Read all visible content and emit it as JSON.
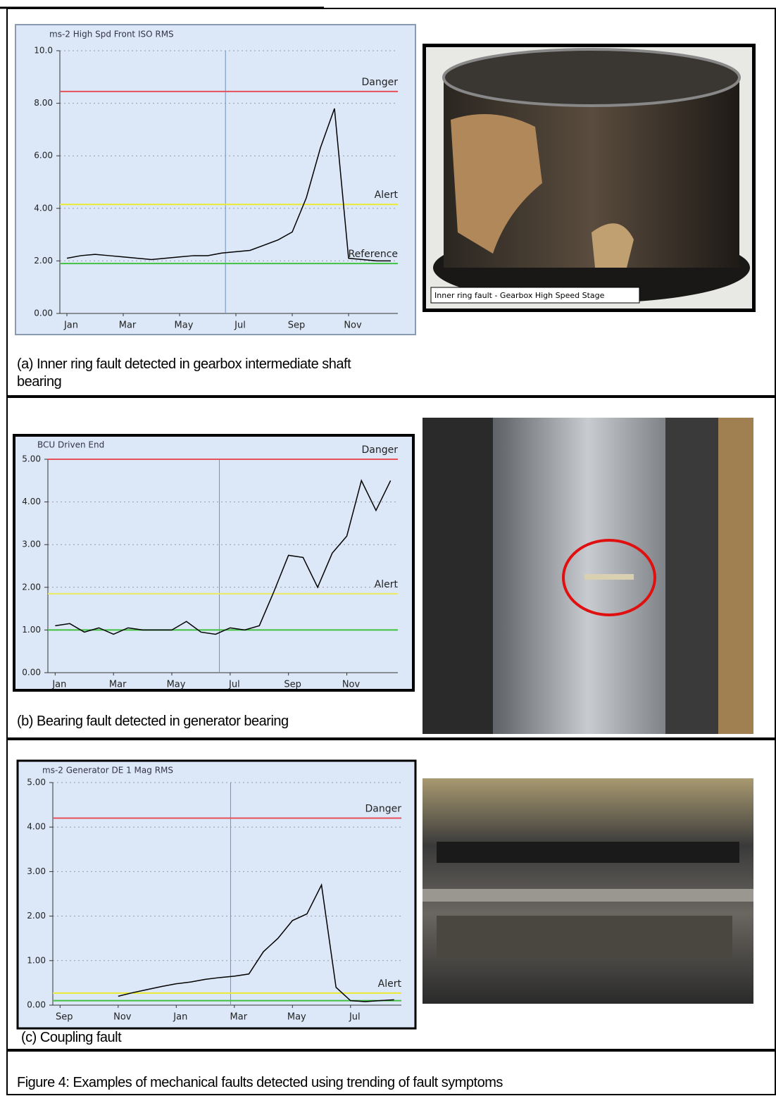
{
  "chart_data": [
    {
      "type": "line",
      "title": "ms-2 High Spd Front ISO RMS",
      "categories": [
        "Jan",
        null,
        null,
        null,
        "Mar",
        null,
        null,
        null,
        "May",
        null,
        null,
        null,
        "Jul",
        null,
        null,
        null,
        "Sep",
        null,
        null,
        null,
        "Nov",
        null,
        null,
        null
      ],
      "series": [
        {
          "color": "#000000",
          "values": [
            2.1,
            2.2,
            2.25,
            2.2,
            2.15,
            2.1,
            2.05,
            2.1,
            2.15,
            2.2,
            2.2,
            2.3,
            2.35,
            2.4,
            2.6,
            2.8,
            3.1,
            4.4,
            6.3,
            7.8,
            2.1,
            2.05,
            2.0,
            2.0
          ]
        }
      ],
      "ylim": [
        0,
        10
      ],
      "yticks": [
        {
          "value": 0,
          "label": "0.00"
        },
        {
          "value": 2,
          "label": "2.00"
        },
        {
          "value": 4,
          "label": "4.00"
        },
        {
          "value": 6,
          "label": "6.00"
        },
        {
          "value": 8,
          "label": "8.00"
        },
        {
          "value": 10,
          "label": "10.0"
        }
      ],
      "grid": true,
      "thresholds": [
        {
          "name": "Danger",
          "value": 8.45,
          "color": "#e8505a"
        },
        {
          "name": "Alert",
          "value": 4.15,
          "color": "#eaea30"
        },
        {
          "name": "Reference",
          "value": 1.9,
          "color": "#40c040"
        }
      ]
    },
    {
      "type": "line",
      "title": "BCU Driven End",
      "categories": [
        "Jan",
        null,
        null,
        null,
        "Mar",
        null,
        null,
        null,
        "May",
        null,
        null,
        null,
        "Jul",
        null,
        null,
        null,
        "Sep",
        null,
        null,
        null,
        "Nov",
        null,
        null,
        null
      ],
      "series": [
        {
          "color": "#000000",
          "values": [
            1.1,
            1.15,
            0.95,
            1.05,
            0.9,
            1.05,
            1.0,
            1.0,
            1.0,
            1.2,
            0.95,
            0.9,
            1.05,
            1.0,
            1.1,
            1.9,
            2.75,
            2.7,
            2.0,
            2.8,
            3.2,
            4.5,
            3.8,
            4.5
          ]
        },
        {
          "color": "#000000",
          "values": [
            null,
            null,
            null,
            null,
            null,
            null,
            null,
            null,
            null,
            null,
            null,
            null,
            null,
            null,
            null,
            null,
            null,
            null,
            null,
            null,
            null,
            null,
            null,
            1.0
          ]
        }
      ],
      "ylim": [
        0,
        5
      ],
      "yticks": [
        {
          "value": 0,
          "label": "0.00"
        },
        {
          "value": 1,
          "label": "1.00"
        },
        {
          "value": 2,
          "label": "2.00"
        },
        {
          "value": 3,
          "label": "3.00"
        },
        {
          "value": 4,
          "label": "4.00"
        },
        {
          "value": 5,
          "label": "5.00"
        }
      ],
      "grid": true,
      "thresholds": [
        {
          "name": "Danger",
          "value": 5.0,
          "color": "#e8505a"
        },
        {
          "name": "Alert",
          "value": 1.85,
          "color": "#eaea60"
        },
        {
          "value": 1.0,
          "color": "#40c040"
        }
      ]
    },
    {
      "type": "line",
      "title": "ms-2 Generator DE 1 Mag RMS",
      "categories": [
        "Sep",
        null,
        null,
        null,
        "Nov",
        null,
        null,
        null,
        "Jan",
        null,
        null,
        null,
        "Mar",
        null,
        null,
        null,
        "May",
        null,
        null,
        null,
        "Jul",
        null,
        null,
        null
      ],
      "series": [
        {
          "color": "#000000",
          "values": [
            null,
            null,
            null,
            null,
            0.2,
            0.28,
            0.35,
            0.42,
            0.48,
            0.52,
            0.58,
            0.62,
            0.65,
            0.7,
            1.2,
            1.5,
            1.9,
            2.05,
            2.7,
            0.4,
            0.1,
            0.08,
            0.1,
            0.12
          ]
        }
      ],
      "ylim": [
        0,
        5
      ],
      "yticks": [
        {
          "value": 0,
          "label": "0.00"
        },
        {
          "value": 1,
          "label": "1.00"
        },
        {
          "value": 2,
          "label": "2.00"
        },
        {
          "value": 3,
          "label": "3.00"
        },
        {
          "value": 4,
          "label": "4.00"
        },
        {
          "value": 5,
          "label": "5.00"
        }
      ],
      "grid": true,
      "thresholds": [
        {
          "name": "Danger",
          "value": 4.2,
          "color": "#e8505a"
        },
        {
          "name": "Alert",
          "value": 0.27,
          "color": "#eaea30"
        },
        {
          "value": 0.1,
          "color": "#40c040"
        }
      ]
    }
  ],
  "photo_label": "Inner ring fault - Gearbox High Speed Stage",
  "captions": [
    "(a) Inner ring fault detected in gearbox intermediate shaft bearing",
    "(b) Bearing fault detected in generator bearing",
    "(c) Coupling fault"
  ],
  "figure_caption": "Figure 4: Examples of mechanical faults detected using trending of fault symptoms"
}
